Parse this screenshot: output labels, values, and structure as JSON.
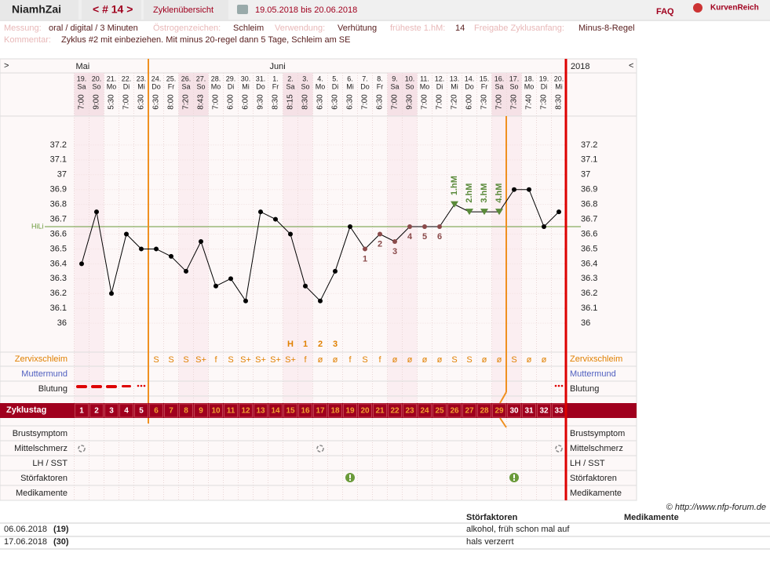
{
  "header": {
    "user": "NiamhZai",
    "cycle_nav": "< # 14 >",
    "overview": "Zyklenübersicht",
    "date_range": "19.05.2018 bis 20.06.2018",
    "faq": "FAQ",
    "brand": "KurvenReich"
  },
  "info": {
    "messung_label": "Messung:",
    "messung": "oral / digital / 3 Minuten",
    "oestrogen_label": "Östrogenzeichen:",
    "oestrogen": "Schleim",
    "verwendung_label": "Verwendung:",
    "verwendung": "Verhütung",
    "hm_label": "früheste 1.hM:",
    "hm": "14",
    "freigabe_label": "Freigabe Zyklusanfang:",
    "freigabe": "Minus-8-Regel",
    "kommentar_label": "Kommentar:",
    "kommentar": "Zyklus #2  mit einbeziehen. Mit minus 20-regel dann 5 Tage,  Schleim am SE"
  },
  "chart_data": {
    "type": "line",
    "nav_left": ">",
    "nav_right": "<",
    "year": "2018",
    "month_labels": [
      "Mai",
      null,
      null,
      null,
      null,
      null,
      null,
      null,
      null,
      null,
      null,
      null,
      null,
      "Juni",
      null,
      null,
      null,
      null,
      null,
      null,
      null,
      null,
      null,
      null,
      null,
      null,
      null,
      null,
      null,
      null,
      null,
      null,
      null
    ],
    "categories": [
      "19.",
      "20.",
      "21.",
      "22.",
      "23.",
      "24.",
      "25.",
      "26.",
      "27.",
      "28.",
      "29.",
      "30.",
      "31.",
      "1.",
      "2.",
      "3.",
      "4.",
      "5.",
      "6.",
      "7.",
      "8.",
      "9.",
      "10.",
      "11.",
      "12.",
      "13.",
      "14.",
      "15.",
      "16.",
      "17.",
      "18.",
      "19.",
      "20."
    ],
    "weekdays": [
      "Sa",
      "So",
      "Mo",
      "Di",
      "Mi",
      "Do",
      "Fr",
      "Sa",
      "So",
      "Mo",
      "Di",
      "Mi",
      "Do",
      "Fr",
      "Sa",
      "So",
      "Mo",
      "Di",
      "Mi",
      "Do",
      "Fr",
      "Sa",
      "So",
      "Mo",
      "Di",
      "Mi",
      "Do",
      "Fr",
      "Sa",
      "So",
      "Mo",
      "Di",
      "Mi"
    ],
    "times": [
      "7:00",
      "9:00",
      "5:30",
      "7:00",
      "6:30",
      "6:30",
      "8:00",
      "7:20",
      "8:43",
      "7:00",
      "6:00",
      "6:00",
      "9:30",
      "8:30",
      "8:15",
      "8:30",
      "6:30",
      "6:30",
      "6:30",
      "7:00",
      "6:30",
      "7:00",
      "9:30",
      "7:00",
      "7:00",
      "7:20",
      "6:00",
      "7:30",
      "7:00",
      "7:30",
      "7:40",
      "7:30",
      "8:30"
    ],
    "values": [
      36.4,
      36.75,
      36.2,
      36.6,
      36.5,
      36.5,
      36.45,
      36.35,
      36.55,
      36.25,
      36.3,
      36.15,
      36.75,
      36.7,
      36.6,
      36.25,
      36.15,
      36.35,
      36.65,
      36.5,
      36.6,
      36.55,
      36.65,
      36.65,
      36.65,
      36.8,
      36.75,
      36.75,
      36.75,
      36.9,
      36.9,
      36.65,
      36.75
    ],
    "color": "#000000",
    "ylim": [
      35.8,
      37.4
    ],
    "yticks": [
      36,
      36.1,
      36.2,
      36.3,
      36.4,
      36.5,
      36.6,
      36.7,
      36.8,
      36.9,
      37,
      37.1,
      37.2
    ],
    "hili": {
      "label": "HiLi",
      "value": 36.65
    },
    "temp_counts": [
      null,
      null,
      null,
      null,
      null,
      null,
      null,
      null,
      null,
      null,
      null,
      null,
      null,
      null,
      null,
      null,
      null,
      null,
      null,
      "1",
      "2",
      "3",
      "4",
      "5",
      "6",
      null,
      null,
      null,
      null,
      null,
      null,
      null,
      null
    ],
    "hm_labels": [
      null,
      null,
      null,
      null,
      null,
      null,
      null,
      null,
      null,
      null,
      null,
      null,
      null,
      null,
      null,
      null,
      null,
      null,
      null,
      null,
      null,
      null,
      null,
      null,
      null,
      "1.hM",
      "2.hM",
      "3.hM",
      "4.hM",
      null,
      null,
      null,
      null
    ],
    "peak_labels": [
      null,
      null,
      null,
      null,
      null,
      null,
      null,
      null,
      null,
      null,
      null,
      null,
      null,
      null,
      "H",
      "1",
      "2",
      "3",
      null,
      null,
      null,
      null,
      null,
      null,
      null,
      null,
      null,
      null,
      null,
      null,
      null,
      null,
      null
    ],
    "mucus": [
      null,
      null,
      null,
      null,
      null,
      "S",
      "S",
      "S",
      "S+",
      "f",
      "S",
      "S+",
      "S+",
      "S+",
      "S+",
      "f",
      "ø",
      "ø",
      "f",
      "S",
      "f",
      "ø",
      "ø",
      "ø",
      "ø",
      "S",
      "S",
      "ø",
      "ø",
      "S",
      "ø",
      "ø",
      null
    ],
    "cycle_days": [
      1,
      2,
      3,
      4,
      5,
      6,
      7,
      8,
      9,
      10,
      11,
      12,
      13,
      14,
      15,
      16,
      17,
      18,
      19,
      20,
      21,
      22,
      23,
      24,
      25,
      26,
      27,
      28,
      29,
      30,
      31,
      32,
      33
    ],
    "row_labels": [
      "Zervixschleim",
      "Muttermund",
      "Blutung",
      "Zyklustag",
      "Brustsymptom",
      "Mittelschmerz",
      "LH / SST",
      "Störfaktoren",
      "Medikamente"
    ]
  },
  "footer": {
    "copyright": "© http://www.nfp-forum.de",
    "col_stoer": "Störfaktoren",
    "col_med": "Medikamente",
    "rows": [
      [
        "06.06.2018",
        "(19)",
        "alkohol, früh schon mal auf"
      ],
      [
        "17.06.2018",
        "(30)",
        "hals verzerrt"
      ]
    ]
  }
}
